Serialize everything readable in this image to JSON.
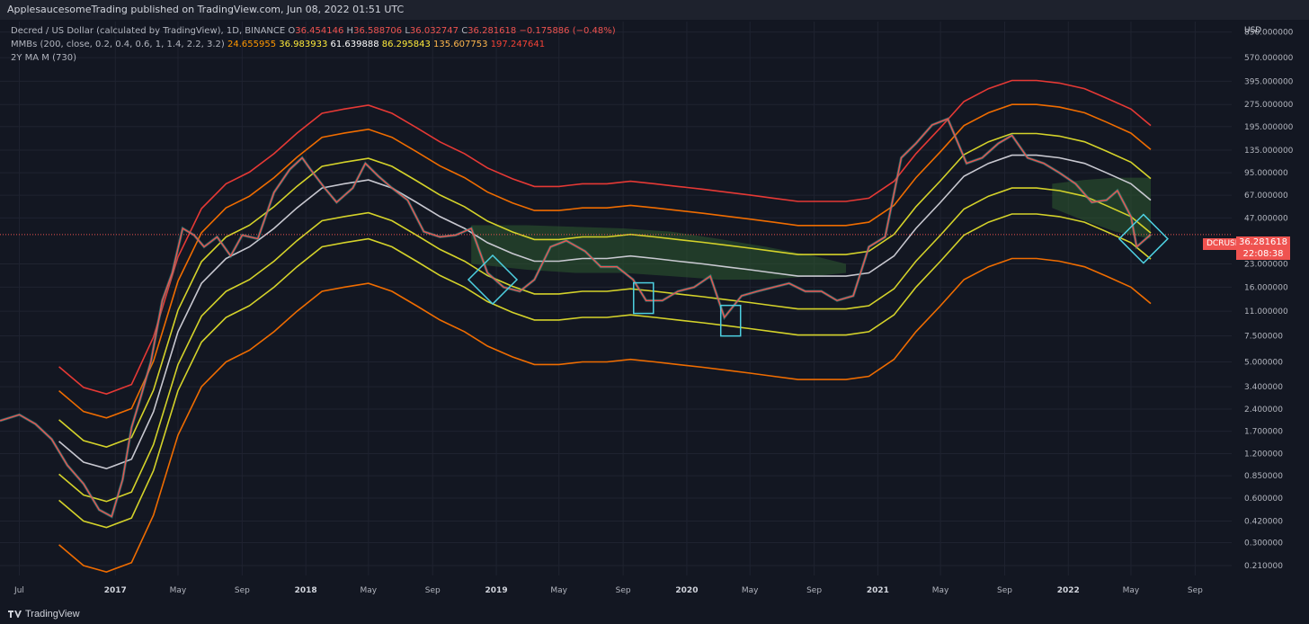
{
  "header": {
    "publisher_line": "ApplesaucesomeTrading published on TradingView.com, Jun 08, 2022 01:51 UTC"
  },
  "legend": {
    "symbol_line": "Decred / US Dollar (calculated by TradingView), 1D, BINANCE",
    "ohlc": {
      "O": "36.454146",
      "H": "36.588706",
      "L": "36.032747",
      "C": "36.281618",
      "change": "−0.175886 (−0.48%)"
    },
    "mmb_label": "MMBs (200, close, 0.2, 0.4, 0.6, 1, 1.4, 2.2, 3.2)",
    "mmb_values": [
      "24.655955",
      "36.983933",
      "61.639888",
      "86.295843",
      "135.607753",
      "197.247641"
    ],
    "ma_label": "2Y MA M (730)"
  },
  "price_label": {
    "symbol": "DCRUSD",
    "price": "36.281618",
    "countdown": "22:08:38"
  },
  "footer": {
    "brand": "TradingView"
  },
  "colors": {
    "background": "#131722",
    "grid": "#1f2330",
    "up": "#26a69a",
    "down": "#ef5350",
    "band_red": "#e53935",
    "band_orange": "#ef6c00",
    "band_yellow": "#d4d22a",
    "band_white": "#c8c8d0",
    "zone_fill": "#2e5a30",
    "highlight": "#4dd0e1",
    "current_line": "#ef5350"
  },
  "chart_data": {
    "type": "line",
    "title": "Decred / US Dollar",
    "y_scale": "log",
    "ylim": [
      0.18,
      1000
    ],
    "y_axis_unit": "USD",
    "y_ticks": [
      "850.000000",
      "570.000000",
      "395.000000",
      "275.000000",
      "195.000000",
      "135.000000",
      "95.000000",
      "67.000000",
      "47.000000",
      "23.000000",
      "16.000000",
      "11.000000",
      "7.500000",
      "5.000000",
      "3.400000",
      "2.400000",
      "1.700000",
      "1.200000",
      "0.850000",
      "0.600000",
      "0.420000",
      "0.300000",
      "0.210000"
    ],
    "x_range": [
      "2016-05-25",
      "2022-11-10"
    ],
    "x_ticks": [
      {
        "date": "2016-07-01",
        "label": "Jul"
      },
      {
        "date": "2017-01-01",
        "label": "2017"
      },
      {
        "date": "2017-05-01",
        "label": "May"
      },
      {
        "date": "2017-09-01",
        "label": "Sep"
      },
      {
        "date": "2018-01-01",
        "label": "2018"
      },
      {
        "date": "2018-05-01",
        "label": "May"
      },
      {
        "date": "2018-09-01",
        "label": "Sep"
      },
      {
        "date": "2019-01-01",
        "label": "2019"
      },
      {
        "date": "2019-05-01",
        "label": "May"
      },
      {
        "date": "2019-09-01",
        "label": "Sep"
      },
      {
        "date": "2020-01-01",
        "label": "2020"
      },
      {
        "date": "2020-05-01",
        "label": "May"
      },
      {
        "date": "2020-09-01",
        "label": "Sep"
      },
      {
        "date": "2021-01-01",
        "label": "2021"
      },
      {
        "date": "2021-05-01",
        "label": "May"
      },
      {
        "date": "2021-09-01",
        "label": "Sep"
      },
      {
        "date": "2022-01-01",
        "label": "2022"
      },
      {
        "date": "2022-05-01",
        "label": "May"
      },
      {
        "date": "2022-09-01",
        "label": "Sep"
      }
    ],
    "band_dates": [
      "2016-09-15",
      "2016-11-01",
      "2016-12-15",
      "2017-02-01",
      "2017-03-15",
      "2017-05-01",
      "2017-06-15",
      "2017-08-01",
      "2017-09-15",
      "2017-11-01",
      "2017-12-15",
      "2018-02-01",
      "2018-03-15",
      "2018-05-01",
      "2018-06-15",
      "2018-08-01",
      "2018-09-15",
      "2018-11-01",
      "2018-12-15",
      "2019-02-01",
      "2019-03-15",
      "2019-05-01",
      "2019-06-15",
      "2019-08-01",
      "2019-09-15",
      "2019-11-01",
      "2019-12-15",
      "2020-02-01",
      "2020-03-15",
      "2020-05-01",
      "2020-06-15",
      "2020-08-01",
      "2020-09-15",
      "2020-11-01",
      "2020-12-15",
      "2021-02-01",
      "2021-03-15",
      "2021-05-01",
      "2021-06-15",
      "2021-08-01",
      "2021-09-15",
      "2021-11-01",
      "2021-12-15",
      "2022-02-01",
      "2022-03-15",
      "2022-05-01",
      "2022-06-08"
    ],
    "band_mid": [
      1.45,
      1.05,
      0.95,
      1.1,
      2.3,
      8,
      17,
      25,
      30,
      40,
      55,
      75,
      80,
      85,
      75,
      60,
      48,
      40,
      32,
      27,
      24,
      24,
      25,
      25,
      26,
      25,
      24,
      23,
      22,
      21,
      20,
      19,
      19,
      19,
      20,
      26,
      40,
      60,
      90,
      110,
      125,
      125,
      120,
      110,
      95,
      80,
      62
    ],
    "band_multipliers": [
      {
        "name": "MMB 0.2",
        "k": 0.2,
        "color": "band_orange"
      },
      {
        "name": "MMB 0.4",
        "k": 0.4,
        "color": "band_yellow"
      },
      {
        "name": "MMB 0.6",
        "k": 0.6,
        "color": "band_yellow"
      },
      {
        "name": "MMB 1",
        "k": 1.0,
        "color": "band_white"
      },
      {
        "name": "MMB 1.4",
        "k": 1.4,
        "color": "band_yellow"
      },
      {
        "name": "MMB 2.2",
        "k": 2.2,
        "color": "band_orange"
      },
      {
        "name": "MMB 3.2",
        "k": 3.2,
        "color": "band_red"
      }
    ],
    "price_series": {
      "name": "DCRUSD",
      "x": [
        "2016-05-25",
        "2016-07-01",
        "2016-08-01",
        "2016-09-01",
        "2016-10-01",
        "2016-11-01",
        "2016-12-01",
        "2016-12-25",
        "2017-01-15",
        "2017-02-01",
        "2017-02-20",
        "2017-03-10",
        "2017-04-01",
        "2017-04-20",
        "2017-05-10",
        "2017-06-01",
        "2017-06-20",
        "2017-07-15",
        "2017-08-10",
        "2017-09-01",
        "2017-10-01",
        "2017-11-01",
        "2017-12-01",
        "2017-12-25",
        "2018-01-10",
        "2018-02-06",
        "2018-03-01",
        "2018-04-01",
        "2018-04-25",
        "2018-05-20",
        "2018-06-15",
        "2018-07-15",
        "2018-08-15",
        "2018-09-15",
        "2018-10-15",
        "2018-11-14",
        "2018-12-15",
        "2019-01-15",
        "2019-02-15",
        "2019-03-15",
        "2019-04-15",
        "2019-05-15",
        "2019-06-20",
        "2019-07-20",
        "2019-08-20",
        "2019-09-20",
        "2019-10-15",
        "2019-11-15",
        "2019-12-15",
        "2020-01-15",
        "2020-02-15",
        "2020-03-13",
        "2020-04-15",
        "2020-05-15",
        "2020-06-15",
        "2020-07-15",
        "2020-08-15",
        "2020-09-15",
        "2020-10-15",
        "2020-11-15",
        "2020-12-15",
        "2021-01-15",
        "2021-02-15",
        "2021-03-15",
        "2021-04-15",
        "2021-05-15",
        "2021-06-20",
        "2021-07-20",
        "2021-08-20",
        "2021-09-15",
        "2021-10-15",
        "2021-11-15",
        "2021-12-15",
        "2022-01-15",
        "2022-02-15",
        "2022-03-15",
        "2022-04-05",
        "2022-05-01",
        "2022-05-12",
        "2022-06-08"
      ],
      "y": [
        2.0,
        2.2,
        1.9,
        1.5,
        1.0,
        0.75,
        0.5,
        0.45,
        0.8,
        1.8,
        3.0,
        5,
        13,
        20,
        40,
        36,
        30,
        35,
        26,
        36,
        34,
        70,
        100,
        120,
        100,
        75,
        60,
        75,
        110,
        90,
        75,
        62,
        38,
        35,
        36,
        40,
        20,
        16,
        15,
        18,
        30,
        33,
        28,
        22,
        22,
        18,
        13,
        13,
        15,
        16,
        19,
        10,
        14,
        15,
        16,
        17,
        15,
        15,
        13,
        14,
        30,
        35,
        120,
        150,
        200,
        220,
        110,
        120,
        150,
        170,
        120,
        110,
        95,
        80,
        60,
        62,
        72,
        48,
        30,
        36.28
      ]
    },
    "current_price": 36.281618,
    "shaded_zone": {
      "x": [
        "2018-11-14",
        "2019-03-01",
        "2019-06-01",
        "2019-09-01",
        "2019-12-01",
        "2020-03-01",
        "2020-06-01",
        "2020-09-01",
        "2020-11-01"
      ],
      "upper": [
        42,
        42,
        41,
        40,
        38,
        34,
        30,
        26,
        23
      ],
      "lower": [
        23,
        21,
        20,
        20,
        19,
        18,
        18,
        19,
        20
      ]
    },
    "shaded_zone_2022": {
      "x": [
        "2021-12-01",
        "2022-02-01",
        "2022-04-01",
        "2022-06-08"
      ],
      "upper": [
        80,
        85,
        88,
        88
      ],
      "lower": [
        55,
        45,
        38,
        34
      ]
    },
    "highlight_boxes": [
      {
        "center_date": "2018-12-25",
        "center_price": 18,
        "shape": "diamond"
      },
      {
        "center_date": "2019-10-10",
        "center_price": 13.5,
        "shape": "rect"
      },
      {
        "center_date": "2020-03-25",
        "center_price": 9.5,
        "shape": "rect"
      },
      {
        "center_date": "2022-05-25",
        "center_price": 34,
        "shape": "diamond"
      }
    ]
  }
}
